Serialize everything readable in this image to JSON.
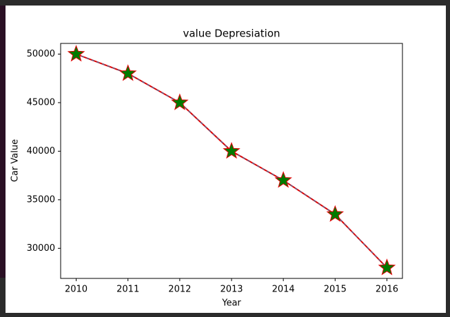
{
  "chart_data": {
    "type": "line",
    "title": "value Depresiation",
    "x_label": "Year",
    "y_label": "Car Value",
    "x": [
      2010,
      2011,
      2012,
      2013,
      2014,
      2015,
      2016
    ],
    "values": [
      50000,
      48000,
      45000,
      40000,
      37000,
      33500,
      28000
    ],
    "color": "#e00000",
    "marker_color": "#007a00",
    "xlim": [
      2009.7,
      2016.3
    ],
    "xticks": [
      2010,
      2011,
      2012,
      2013,
      2014,
      2015,
      2016
    ],
    "ylim": [
      26900,
      51100
    ],
    "yticks": [
      30000,
      35000,
      40000,
      45000,
      50000
    ]
  }
}
